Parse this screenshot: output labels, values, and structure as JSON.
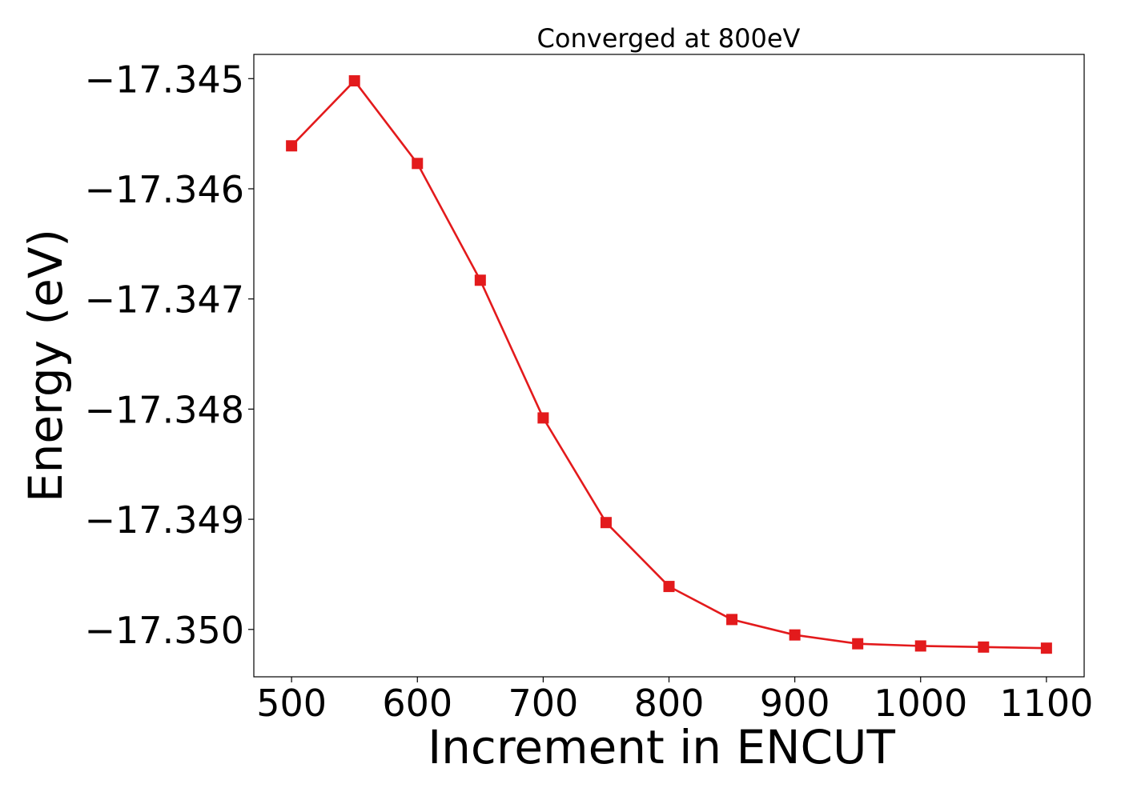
{
  "chart_data": {
    "type": "line",
    "title": "Converged at 800eV",
    "xlabel": "Increment in ENCUT",
    "ylabel": "Energy (eV)",
    "xlim": [
      470,
      1130
    ],
    "ylim": [
      -17.35043,
      -17.34478
    ],
    "xticks": [
      500,
      600,
      700,
      800,
      900,
      1000,
      1100
    ],
    "xtick_labels": [
      "500",
      "600",
      "700",
      "800",
      "900",
      "1000",
      "1100"
    ],
    "yticks": [
      -17.345,
      -17.346,
      -17.347,
      -17.348,
      -17.349,
      -17.35
    ],
    "ytick_labels": [
      "−17.345",
      "−17.346",
      "−17.347",
      "−17.348",
      "−17.349",
      "−17.350"
    ],
    "grid": false,
    "series": [
      {
        "color": "#e31a1c",
        "marker": "square",
        "x": [
          500,
          550,
          600,
          650,
          700,
          750,
          800,
          850,
          900,
          950,
          1000,
          1050,
          1100
        ],
        "y": [
          -17.34561,
          -17.34502,
          -17.34577,
          -17.34683,
          -17.34808,
          -17.34903,
          -17.34961,
          -17.34991,
          -17.35005,
          -17.35013,
          -17.35015,
          -17.35016,
          -17.35017
        ]
      }
    ]
  }
}
